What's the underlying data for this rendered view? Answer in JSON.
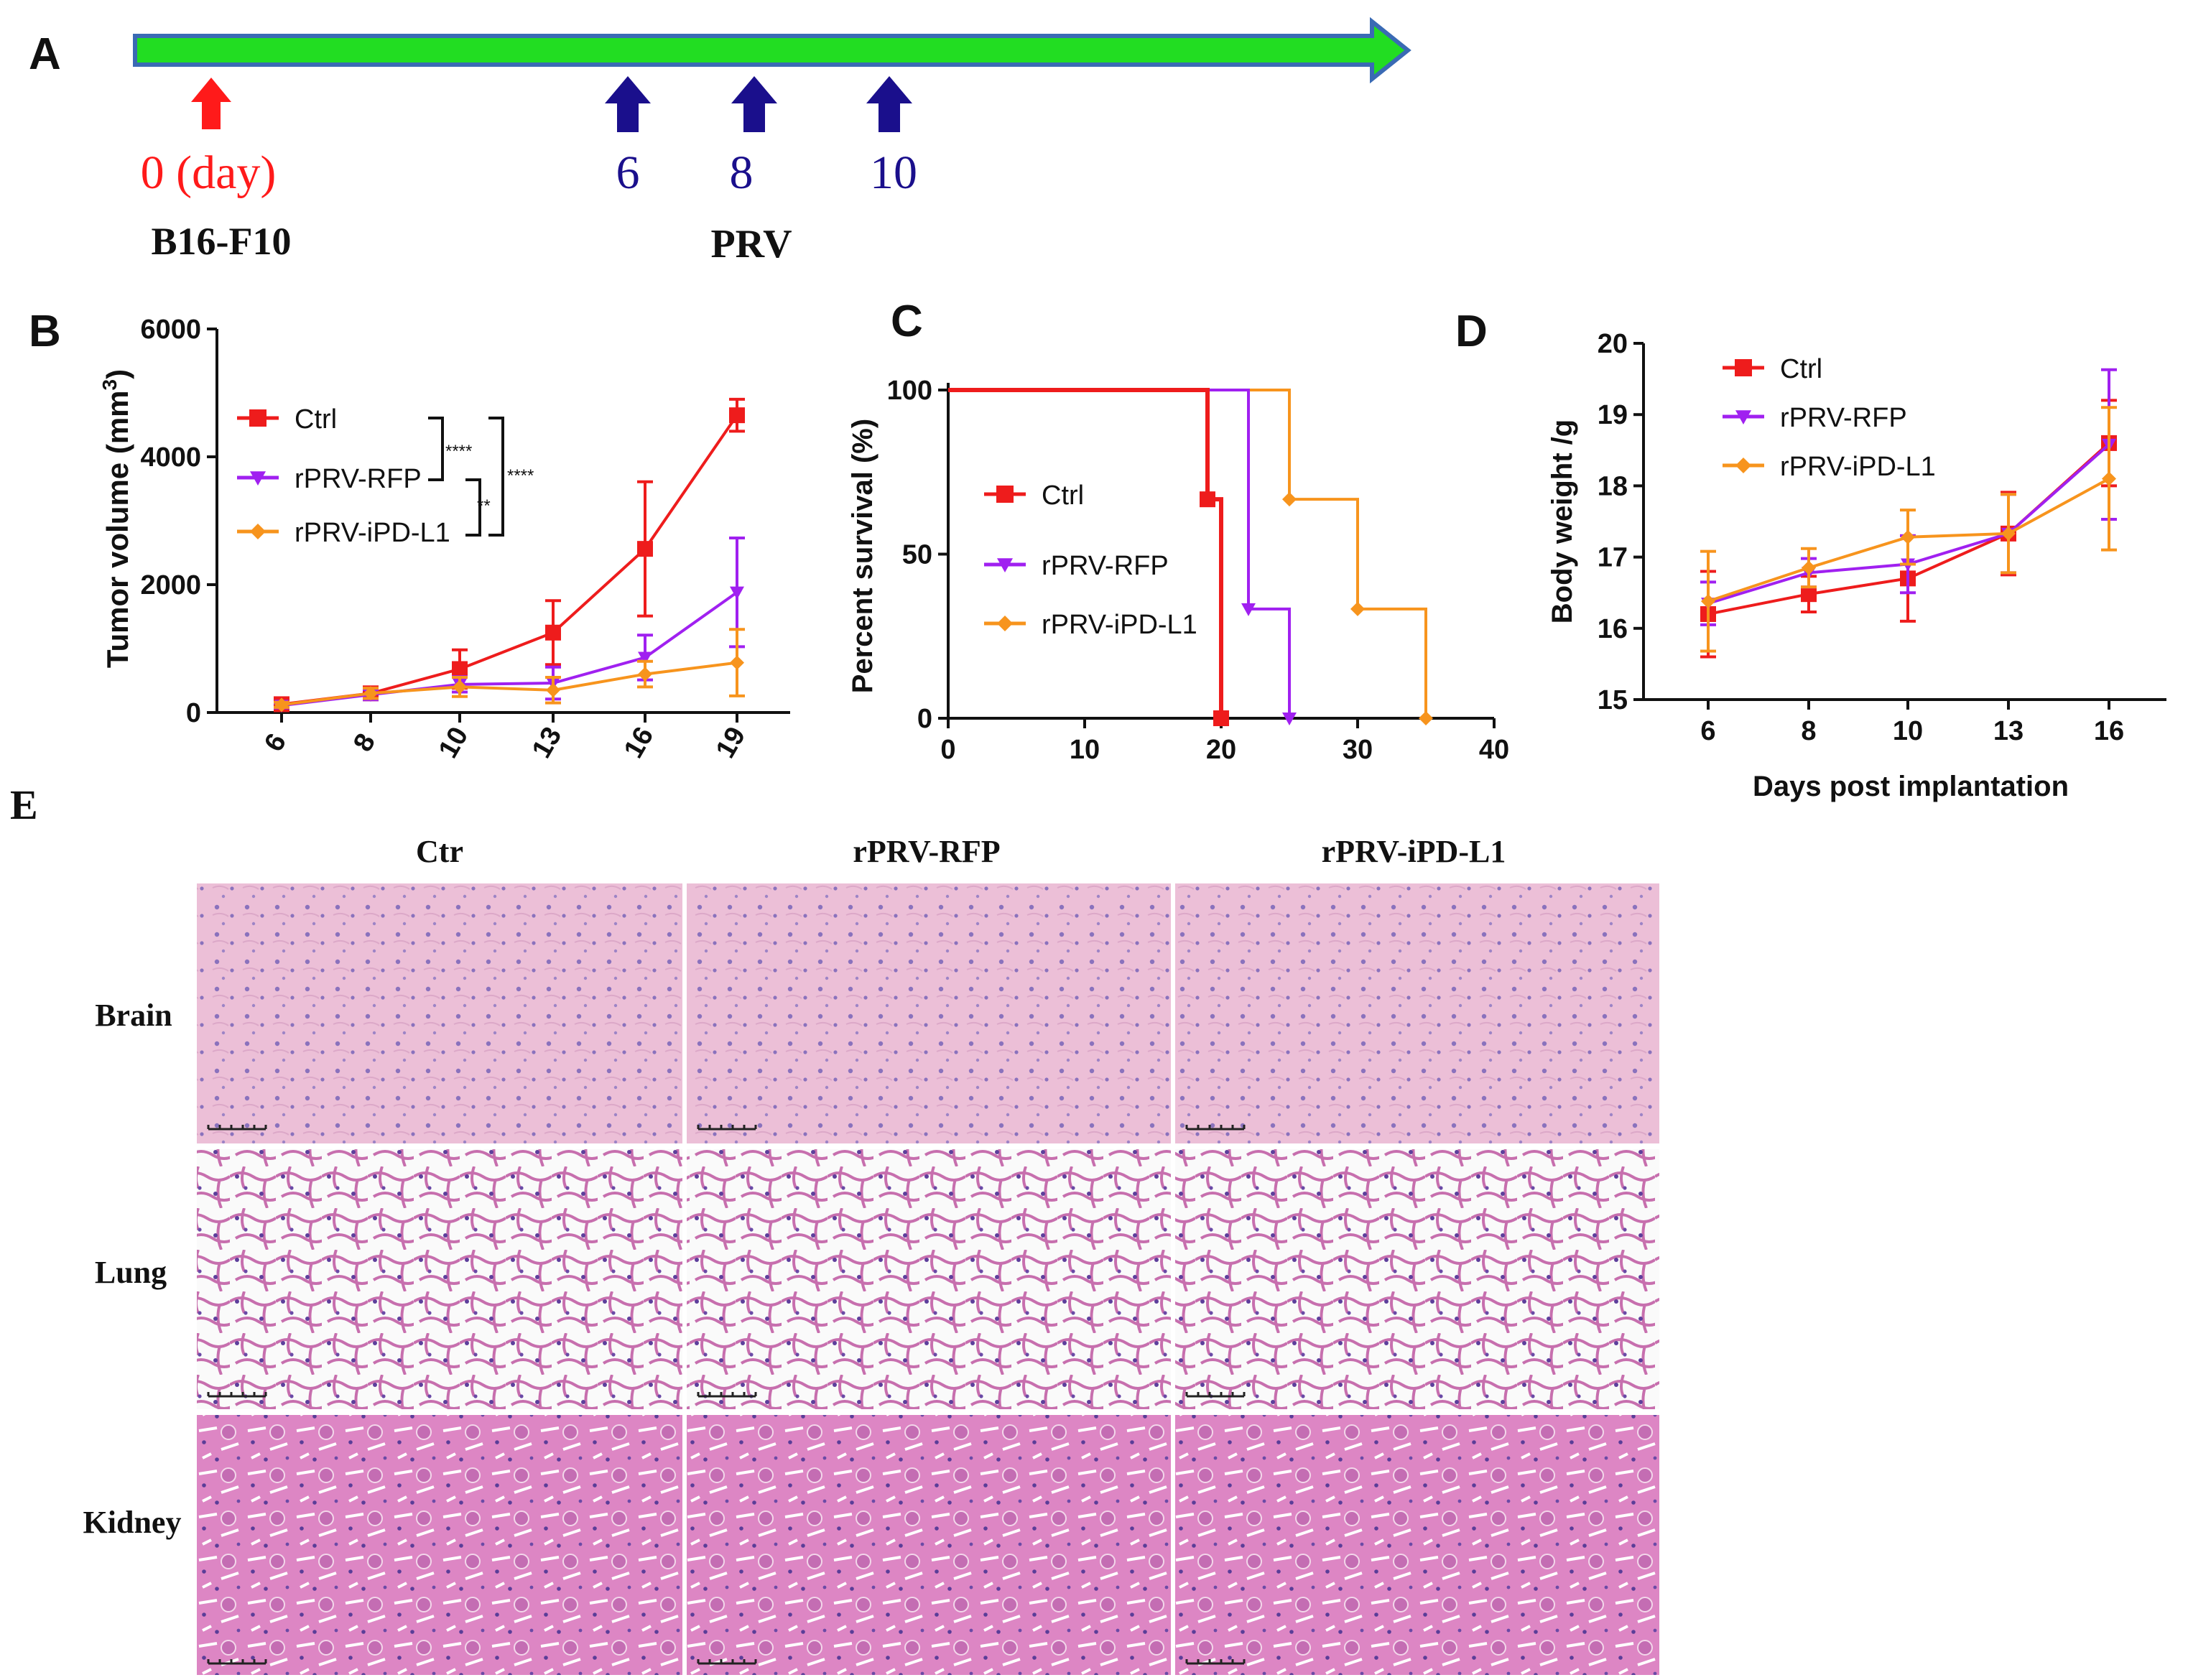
{
  "panel_labels": {
    "a": "A",
    "b": "B",
    "c": "C",
    "d": "D",
    "e": "E"
  },
  "colors": {
    "ctrl": "#ee1c1c",
    "rfp": "#a020f0",
    "ipdl1": "#f7941d",
    "timeline": "#22dd22",
    "timeline_border": "#3a6ab4",
    "arrow_red": "#ff1a1a",
    "arrow_blue": "#1a0f8c"
  },
  "timeline": {
    "start_day": "0 (day)",
    "start_label": "B16-F10",
    "prv_days": [
      "6",
      "8",
      "10"
    ],
    "prv_label": "PRV"
  },
  "histology": {
    "columns": [
      "Ctr",
      "rPRV-RFP",
      "rPRV-iPD-L1"
    ],
    "rows": [
      "Brain",
      "Lung",
      "Kidney"
    ]
  },
  "chart_data": [
    {
      "id": "B",
      "type": "line",
      "ylabel": "Tumor volume (mm",
      "ylabel_sup": "3",
      "ylabel_close": ")",
      "xlabel": "",
      "categories": [
        "6",
        "8",
        "10",
        "13",
        "16",
        "19"
      ],
      "ylim": [
        0,
        6000
      ],
      "yticks": [
        "0",
        "2000",
        "4000",
        "6000"
      ],
      "series": [
        {
          "name": "Ctrl",
          "values": [
            130,
            300,
            680,
            1250,
            2560,
            4650
          ],
          "errors": [
            40,
            90,
            300,
            500,
            1050,
            250
          ]
        },
        {
          "name": "rPRV-RFP",
          "values": [
            110,
            280,
            440,
            460,
            860,
            1880
          ],
          "errors": [
            40,
            80,
            120,
            250,
            350,
            850
          ]
        },
        {
          "name": "rPRV-iPD-L1",
          "values": [
            120,
            300,
            400,
            350,
            600,
            780
          ],
          "errors": [
            40,
            80,
            150,
            200,
            200,
            520
          ]
        }
      ],
      "significance": [
        "****",
        "**",
        "****"
      ]
    },
    {
      "id": "C",
      "type": "line",
      "ylabel": "Percent survival (%)",
      "xlabel": "",
      "xlim": [
        0,
        40
      ],
      "xticks": [
        "0",
        "10",
        "20",
        "30",
        "40"
      ],
      "ylim": [
        0,
        100
      ],
      "yticks": [
        "0",
        "50",
        "100"
      ],
      "series": [
        {
          "name": "Ctrl",
          "steps": [
            [
              0,
              100
            ],
            [
              19,
              100
            ],
            [
              19,
              66.7
            ],
            [
              20,
              66.7
            ],
            [
              20,
              0
            ]
          ],
          "marks": [
            [
              19,
              66.7
            ],
            [
              20,
              0
            ]
          ]
        },
        {
          "name": "rPRV-RFP",
          "steps": [
            [
              0,
              100
            ],
            [
              22,
              100
            ],
            [
              22,
              33.3
            ],
            [
              25,
              33.3
            ],
            [
              25,
              0
            ]
          ],
          "marks": [
            [
              22,
              33.3
            ],
            [
              25,
              0
            ]
          ]
        },
        {
          "name": "rPRV-iPD-L1",
          "steps": [
            [
              0,
              100
            ],
            [
              25,
              100
            ],
            [
              25,
              66.7
            ],
            [
              30,
              66.7
            ],
            [
              30,
              33.3
            ],
            [
              35,
              33.3
            ],
            [
              35,
              0
            ]
          ],
          "marks": [
            [
              25,
              66.7
            ],
            [
              30,
              33.3
            ],
            [
              35,
              0
            ]
          ]
        }
      ]
    },
    {
      "id": "D",
      "type": "line",
      "ylabel": "Body weight /g",
      "xlabel": "Days post implantation",
      "categories": [
        "6",
        "8",
        "10",
        "13",
        "16"
      ],
      "ylim": [
        15,
        20
      ],
      "yticks": [
        "15",
        "16",
        "17",
        "18",
        "19",
        "20"
      ],
      "series": [
        {
          "name": "Ctrl",
          "values": [
            16.2,
            16.48,
            16.7,
            17.33,
            18.6
          ],
          "errors": [
            0.6,
            0.25,
            0.6,
            0.58,
            0.6
          ]
        },
        {
          "name": "rPRV-RFP",
          "values": [
            16.35,
            16.78,
            16.9,
            17.33,
            18.58
          ],
          "errors": [
            0.3,
            0.2,
            0.4,
            0.55,
            1.05
          ]
        },
        {
          "name": "rPRV-iPD-L1",
          "values": [
            16.38,
            16.85,
            17.28,
            17.33,
            18.1
          ],
          "errors": [
            0.7,
            0.27,
            0.38,
            0.55,
            1.0
          ]
        }
      ]
    }
  ]
}
